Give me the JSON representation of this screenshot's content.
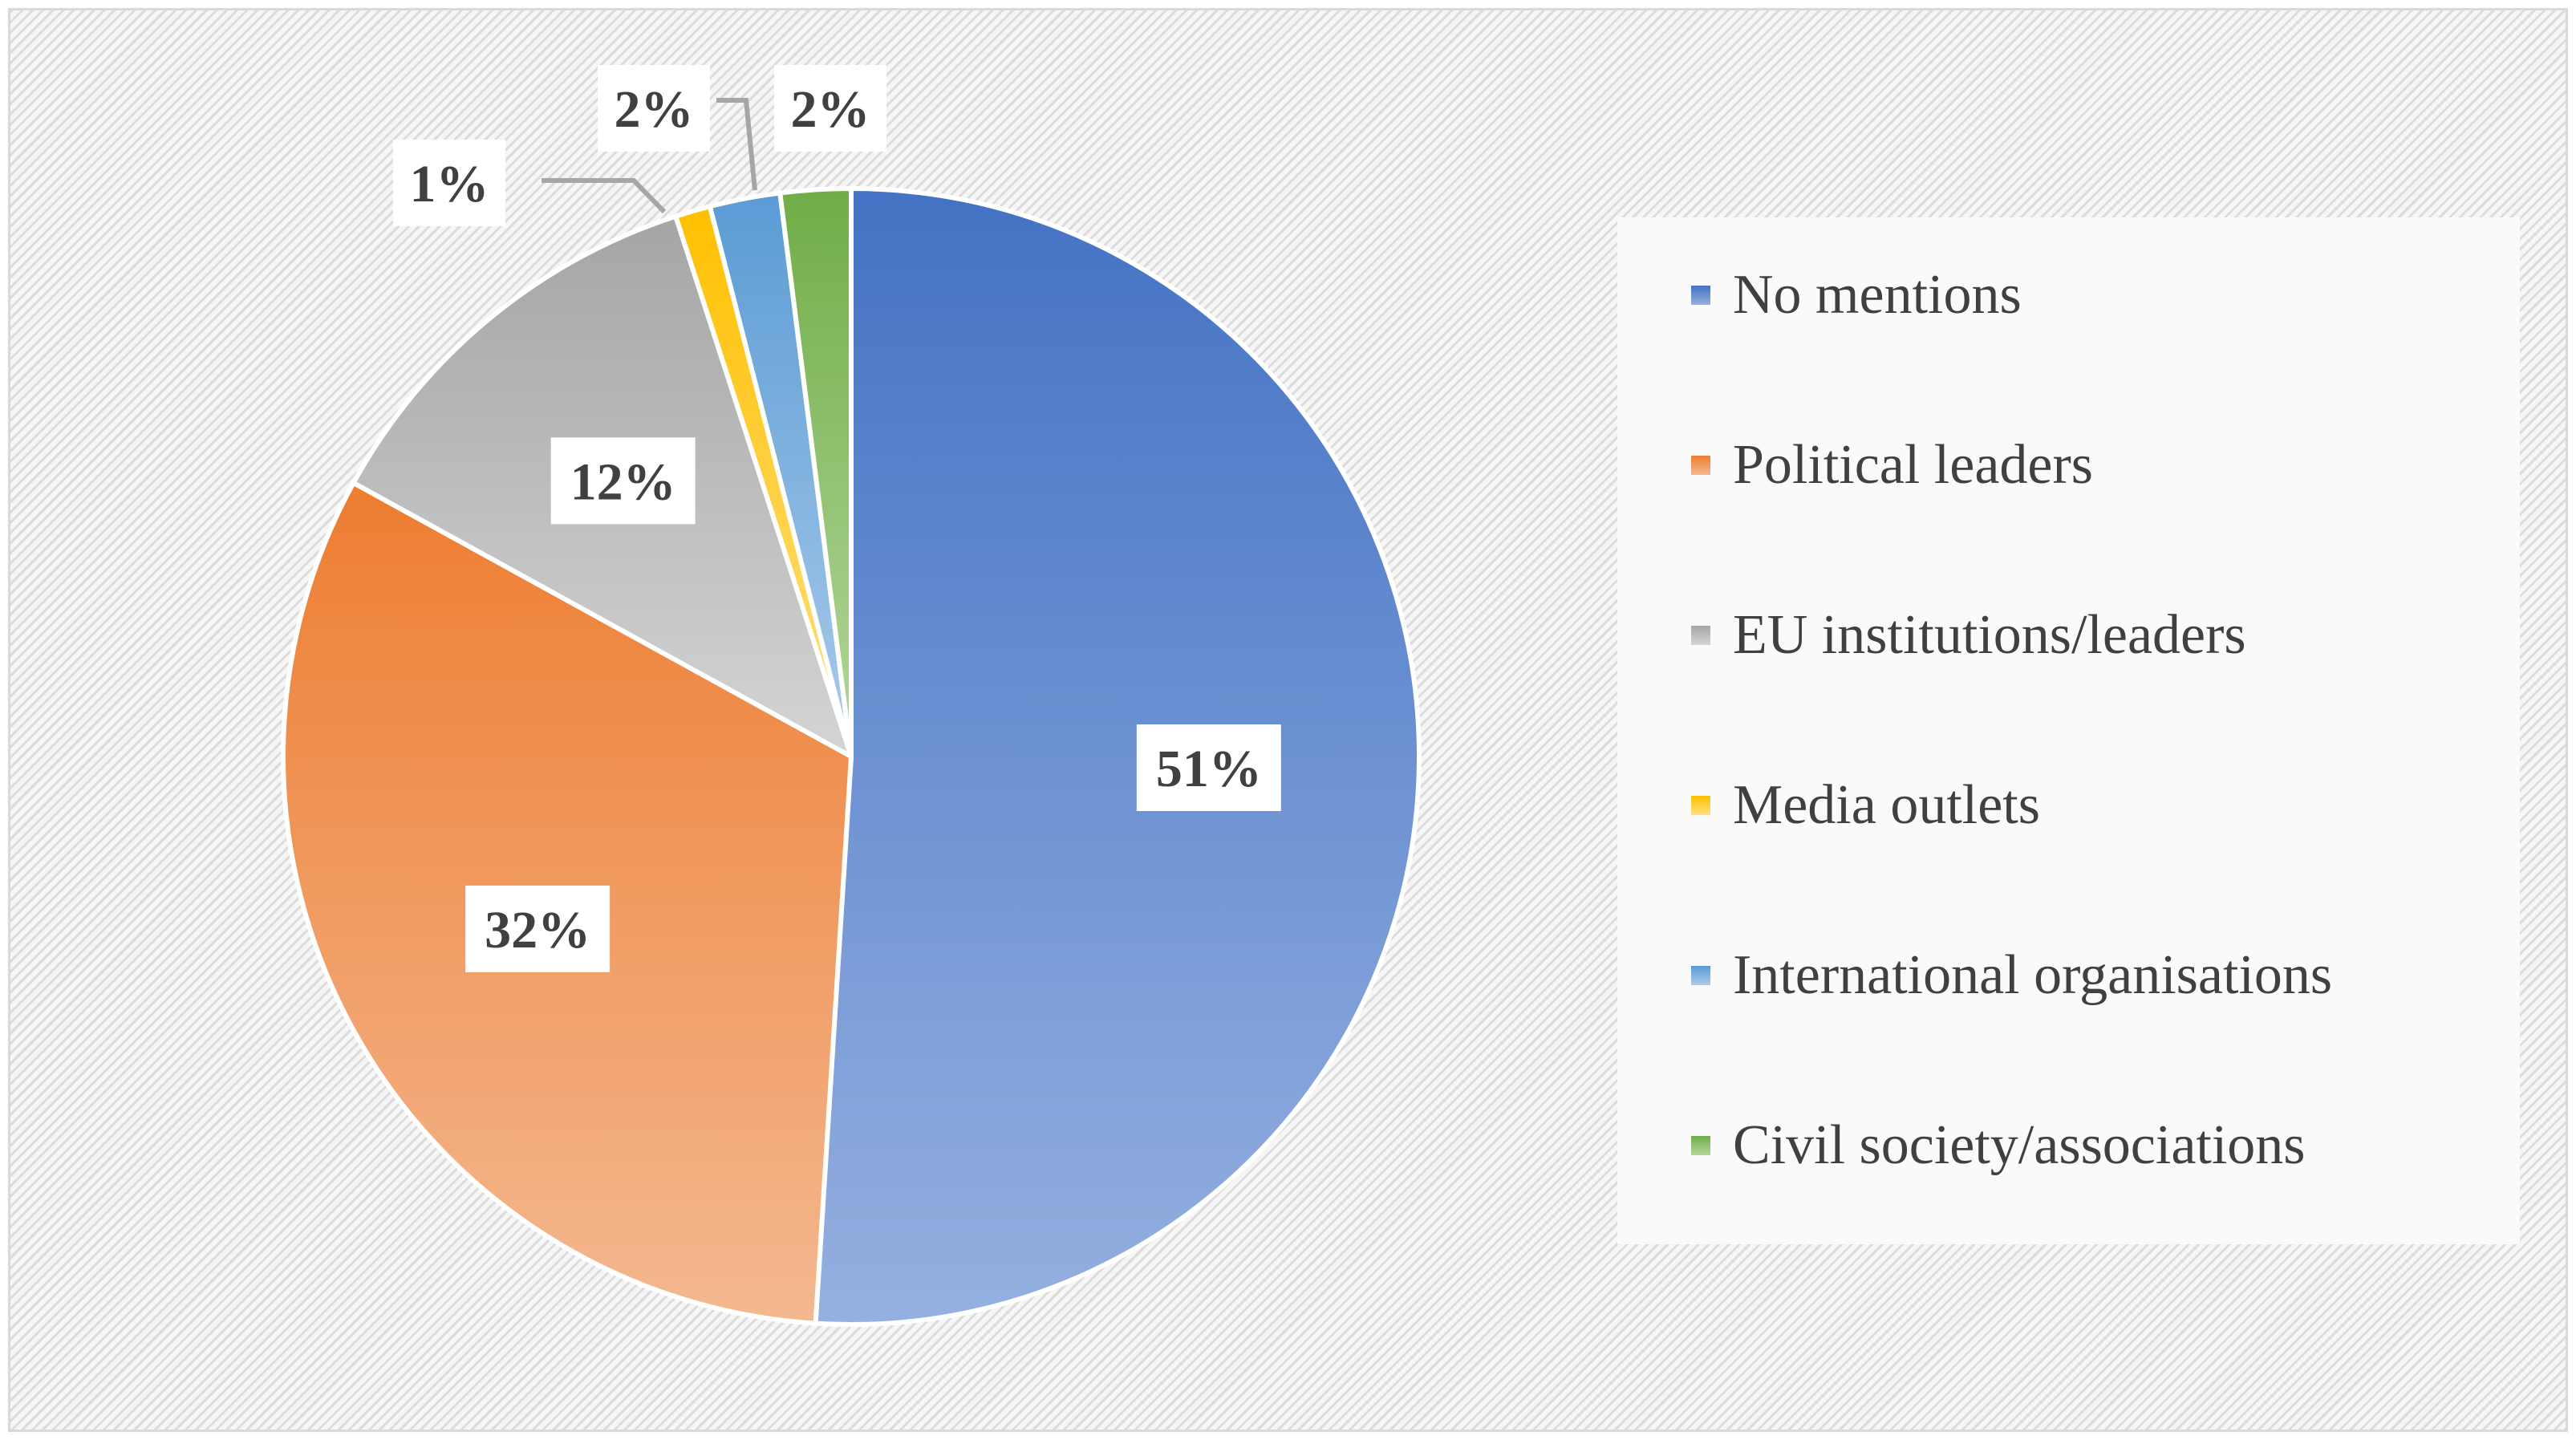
{
  "chart_data": {
    "type": "pie",
    "title": "",
    "categories": [
      "No mentions",
      "Political leaders",
      "EU institutions/leaders",
      "Media outlets",
      "International organisations",
      "Civil society/associations"
    ],
    "values": [
      51,
      32,
      12,
      1,
      2,
      2
    ],
    "labels": [
      "51%",
      "32%",
      "12%",
      "1%",
      "2%",
      "2%"
    ],
    "colors": [
      "#4472c4",
      "#ed7d31",
      "#a5a5a5",
      "#ffc000",
      "#5b9bd5",
      "#70ad47"
    ],
    "colors_light": [
      "#95b0e0",
      "#f4b890",
      "#d4d4d4",
      "#ffe080",
      "#a9cbea",
      "#b3d79c"
    ],
    "start_angle_deg": 0,
    "direction": "clockwise",
    "legend_position": "right"
  }
}
